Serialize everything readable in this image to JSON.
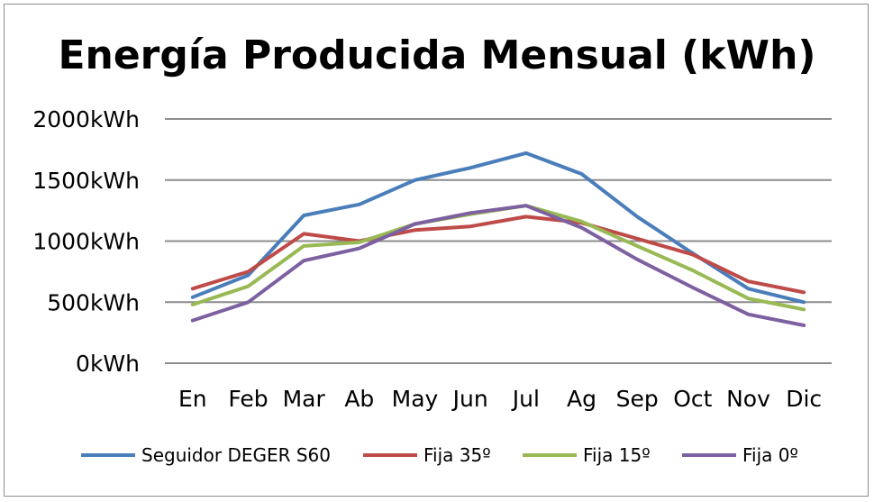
{
  "chart_data": {
    "type": "line",
    "title": "Energía Producida Mensual (kWh)",
    "xlabel": "",
    "ylabel": "",
    "categories": [
      "En",
      "Feb",
      "Mar",
      "Ab",
      "May",
      "Jun",
      "Jul",
      "Ag",
      "Sep",
      "Oct",
      "Nov",
      "Dic"
    ],
    "y_tick_labels": [
      "0kWh",
      "500kWh",
      "1000kWh",
      "1500kWh",
      "2000kWh"
    ],
    "ylim": [
      0,
      2000
    ],
    "y_ticks": [
      0,
      500,
      1000,
      1500,
      2000
    ],
    "grid": true,
    "legend_position": "bottom",
    "series": [
      {
        "name": "Seguidor DEGER S60",
        "color": "#4a7ebb",
        "values": [
          540,
          720,
          1210,
          1300,
          1500,
          1600,
          1720,
          1550,
          1200,
          900,
          610,
          500
        ]
      },
      {
        "name": "Fija 35º",
        "color": "#be4b48",
        "values": [
          610,
          750,
          1060,
          1000,
          1090,
          1120,
          1200,
          1150,
          1020,
          890,
          670,
          580
        ]
      },
      {
        "name": "Fija 15º",
        "color": "#98b954",
        "values": [
          480,
          630,
          960,
          990,
          1140,
          1220,
          1290,
          1160,
          960,
          760,
          530,
          440
        ]
      },
      {
        "name": "Fija 0º",
        "color": "#7d60a0",
        "values": [
          350,
          500,
          840,
          940,
          1140,
          1230,
          1290,
          1110,
          850,
          620,
          400,
          310
        ]
      }
    ]
  }
}
